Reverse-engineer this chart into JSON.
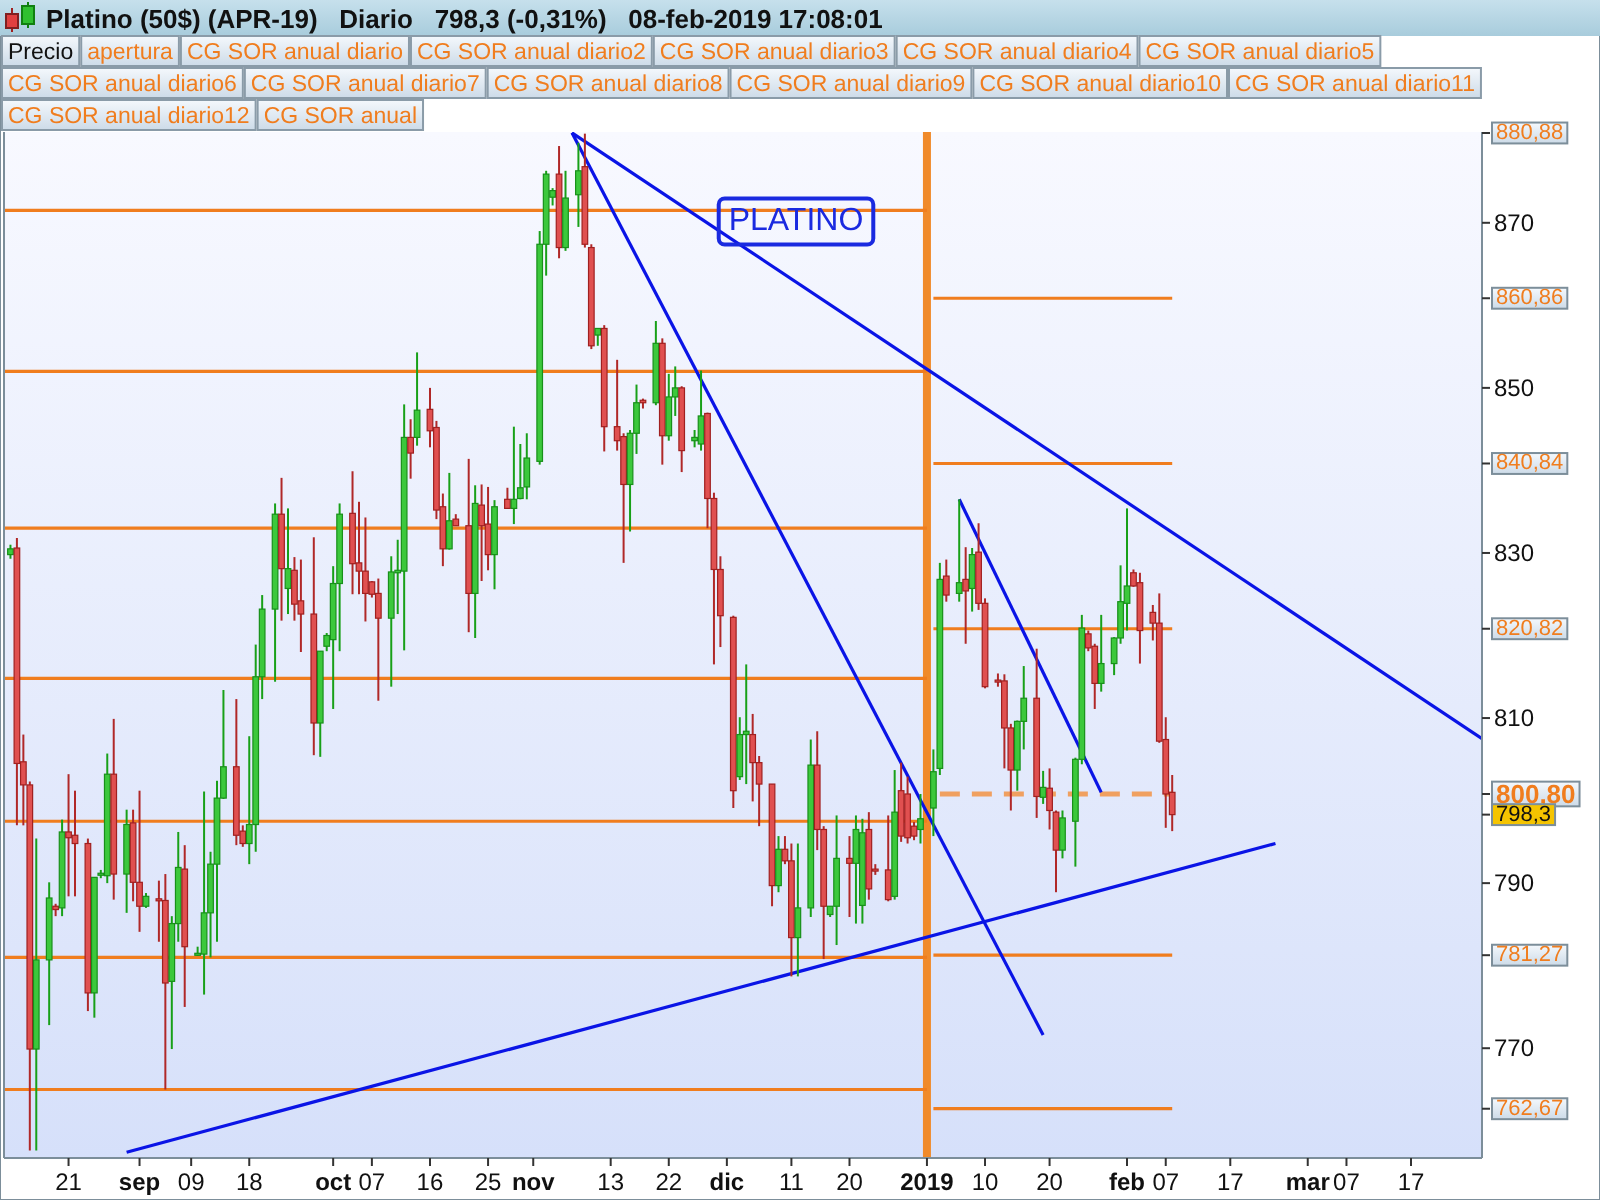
{
  "chart_data": {
    "type": "candlestick",
    "title": "Platino (50$) (APR-19)   Diario   798,3 (-0,31%)   08-feb-2019 17:08:01",
    "subtitle": "PLATINO",
    "x": [
      "2018-08-12",
      "2018-08-13",
      "2018-08-14",
      "2018-08-15",
      "2018-08-16",
      "2018-08-18",
      "2018-08-19",
      "2018-08-20",
      "2018-08-21",
      "2018-08-22",
      "2018-08-24",
      "2018-08-25",
      "2018-08-26",
      "2018-08-27",
      "2018-08-28",
      "2018-08-30",
      "2018-08-31",
      "2018-09-01",
      "2018-09-02",
      "2018-09-04",
      "2018-09-05",
      "2018-09-06",
      "2018-09-07",
      "2018-09-08",
      "2018-09-10",
      "2018-09-11",
      "2018-09-12",
      "2018-09-13",
      "2018-09-14",
      "2018-09-16",
      "2018-09-17",
      "2018-09-18",
      "2018-09-19",
      "2018-09-20",
      "2018-09-22",
      "2018-09-23",
      "2018-09-24",
      "2018-09-25",
      "2018-09-26",
      "2018-09-28",
      "2018-09-29",
      "2018-09-30",
      "2018-10-01",
      "2018-10-02",
      "2018-10-04",
      "2018-10-05",
      "2018-10-06",
      "2018-10-07",
      "2018-10-08",
      "2018-10-10",
      "2018-10-11",
      "2018-10-12",
      "2018-10-13",
      "2018-10-14",
      "2018-10-16",
      "2018-10-17",
      "2018-10-18",
      "2018-10-19",
      "2018-10-20",
      "2018-10-22",
      "2018-10-23",
      "2018-10-24",
      "2018-10-25",
      "2018-10-26",
      "2018-10-28",
      "2018-10-29",
      "2018-10-30",
      "2018-10-31",
      "2018-11-02",
      "2018-11-03",
      "2018-11-04",
      "2018-11-05",
      "2018-11-06",
      "2018-11-08",
      "2018-11-09",
      "2018-11-10",
      "2018-11-11",
      "2018-11-12",
      "2018-11-14",
      "2018-11-15",
      "2018-11-16",
      "2018-11-17",
      "2018-11-18",
      "2018-11-20",
      "2018-11-21",
      "2018-11-22",
      "2018-11-23",
      "2018-11-24",
      "2018-11-26",
      "2018-11-27",
      "2018-11-28",
      "2018-11-29",
      "2018-11-30",
      "2018-12-02",
      "2018-12-03",
      "2018-12-04",
      "2018-12-05",
      "2018-12-06",
      "2018-12-08",
      "2018-12-09",
      "2018-12-10",
      "2018-12-11",
      "2018-12-12",
      "2018-12-14",
      "2018-12-15",
      "2018-12-16",
      "2018-12-17",
      "2018-12-18",
      "2018-12-20",
      "2018-12-21",
      "2018-12-22",
      "2018-12-23",
      "2018-12-24",
      "2018-12-26",
      "2018-12-27",
      "2018-12-28",
      "2018-12-29",
      "2018-12-30",
      "2018-12-31",
      "2019-01-02",
      "2019-01-03",
      "2019-01-04",
      "2019-01-06",
      "2019-01-07",
      "2019-01-08",
      "2019-01-09",
      "2019-01-10",
      "2019-01-12",
      "2019-01-13",
      "2019-01-14",
      "2019-01-15",
      "2019-01-16",
      "2019-01-18",
      "2019-01-19",
      "2019-01-20",
      "2019-01-21",
      "2019-01-22",
      "2019-01-24",
      "2019-01-25",
      "2019-01-26",
      "2019-01-27",
      "2019-01-28",
      "2019-01-30",
      "2019-01-31",
      "2019-02-01",
      "2019-02-02",
      "2019-02-03",
      "2019-02-05",
      "2019-02-06",
      "2019-02-07",
      "2019-02-08"
    ],
    "ohlc": [
      [
        829.8,
        831,
        829.3,
        830.5
      ],
      [
        830.6,
        831.8,
        797,
        804.5
      ],
      [
        804.7,
        808,
        797,
        801.9
      ],
      [
        801.9,
        802.3,
        757.6,
        769.9
      ],
      [
        769.9,
        795.4,
        757.6,
        780.7
      ],
      [
        780.7,
        790.1,
        772.8,
        788.2
      ],
      [
        787.2,
        787.5,
        786,
        786.8
      ],
      [
        787,
        797.7,
        786,
        796.2
      ],
      [
        796.2,
        803.2,
        788.4,
        795.5
      ],
      [
        795.8,
        801.2,
        788.4,
        794.8
      ],
      [
        794.8,
        795.4,
        774.5,
        776.7
      ],
      [
        776.7,
        790.7,
        773.7,
        790.7
      ],
      [
        791,
        791.6,
        790.6,
        791.2
      ],
      [
        790.9,
        805.7,
        790,
        803.2
      ],
      [
        803.2,
        809.9,
        788,
        791.1
      ],
      [
        791.1,
        798.9,
        786.4,
        797.1
      ],
      [
        797.3,
        798.9,
        787.8,
        790.1
      ],
      [
        790.1,
        801.2,
        784.1,
        787.2
      ],
      [
        787.2,
        788.8,
        787,
        788.4
      ],
      [
        788.1,
        790.3,
        782.9,
        787.9
      ],
      [
        787.9,
        791.1,
        765,
        777.9
      ],
      [
        778.1,
        786,
        769.9,
        785.1
      ],
      [
        785.1,
        796.2,
        782.9,
        791.9
      ],
      [
        791.7,
        794.6,
        775,
        782.3
      ],
      [
        781.3,
        782.3,
        781.2,
        781.5
      ],
      [
        781.4,
        801.1,
        776.5,
        786.4
      ],
      [
        786.4,
        793.8,
        781,
        792.3
      ],
      [
        792.3,
        802.4,
        782.9,
        800.3
      ],
      [
        800.3,
        813.4,
        800.2,
        804.1
      ],
      [
        804.1,
        812.3,
        794.6,
        795.8
      ],
      [
        796.3,
        797,
        794.4,
        794.8
      ],
      [
        794.8,
        807.8,
        792.3,
        797.1
      ],
      [
        797.1,
        818.9,
        793.8,
        815
      ],
      [
        815,
        824.9,
        812.3,
        823.2
      ],
      [
        823.2,
        836,
        814.4,
        834.7
      ],
      [
        834.7,
        839.1,
        821.8,
        828.1
      ],
      [
        825.7,
        835.4,
        822.6,
        828.1
      ],
      [
        827.9,
        829.5,
        821.8,
        823.8
      ],
      [
        824.2,
        829.2,
        818,
        822.6
      ],
      [
        822.6,
        831.9,
        805.5,
        809.4
      ],
      [
        809.4,
        818.1,
        805.3,
        818.1
      ],
      [
        818.7,
        820.3,
        818.1,
        820
      ],
      [
        819.5,
        828.4,
        811.1,
        826.3
      ],
      [
        826.3,
        836,
        818.1,
        834.7
      ],
      [
        834.8,
        839.9,
        825,
        828.7
      ],
      [
        828.8,
        836.2,
        825,
        827.8
      ],
      [
        827.8,
        834.3,
        821.7,
        825.1
      ],
      [
        826.5,
        826.6,
        824.6,
        825
      ],
      [
        825.1,
        826.9,
        812.1,
        822.1
      ],
      [
        822.1,
        829.6,
        813.8,
        827.7
      ],
      [
        827.6,
        831.6,
        822.6,
        827.9
      ],
      [
        827.8,
        848,
        818.2,
        844
      ],
      [
        844,
        846.2,
        839,
        842.1
      ],
      [
        844,
        854.3,
        843,
        847.3
      ],
      [
        847.4,
        850,
        842.8,
        844.8
      ],
      [
        845.2,
        846,
        834.1,
        835.2
      ],
      [
        835.6,
        837.2,
        828.4,
        830.5
      ],
      [
        830.5,
        839.7,
        830.4,
        833.9
      ],
      [
        834.1,
        834.7,
        833.3,
        833.3
      ],
      [
        833.3,
        841.4,
        820.4,
        825.1
      ],
      [
        825.1,
        838.2,
        819.7,
        836
      ],
      [
        835.8,
        838.3,
        826.6,
        833.3
      ],
      [
        833.5,
        838,
        827.9,
        829.8
      ],
      [
        829.8,
        836.4,
        825.6,
        835.6
      ],
      [
        836.5,
        837.9,
        835.4,
        835.4
      ],
      [
        835.4,
        845.3,
        833.5,
        836.5
      ],
      [
        836.6,
        843.2,
        836.5,
        837.9
      ],
      [
        838,
        844.5,
        836.5,
        841.5
      ],
      [
        841.1,
        869,
        840.7,
        867.4
      ],
      [
        867.4,
        876.3,
        863.6,
        875.9
      ],
      [
        873.1,
        874.2,
        872.1,
        873.9
      ],
      [
        875.9,
        879.3,
        865.7,
        867
      ],
      [
        867,
        876.3,
        866.6,
        873
      ],
      [
        873.4,
        879.7,
        869.5,
        876.3
      ],
      [
        876.8,
        880.8,
        867,
        867.4
      ],
      [
        867,
        867.4,
        854.7,
        855.1
      ],
      [
        856.4,
        857.2,
        855.1,
        857.2
      ],
      [
        857.2,
        857.6,
        842.3,
        845.3
      ],
      [
        845.3,
        853.4,
        842.4,
        843.6
      ],
      [
        844.1,
        844.5,
        828.8,
        838.3
      ],
      [
        838.3,
        844.9,
        832.6,
        844.5
      ],
      [
        844.5,
        850.4,
        842,
        848.2
      ],
      [
        848.5,
        848.7,
        847.5,
        848.2
      ],
      [
        848.2,
        858.1,
        847.9,
        855.4
      ],
      [
        855.4,
        856,
        840.7,
        844.2
      ],
      [
        844.2,
        851.7,
        843.6,
        848.9
      ],
      [
        848.9,
        852.6,
        846.6,
        850
      ],
      [
        850,
        850.2,
        839.8,
        842.4
      ],
      [
        843.6,
        844.9,
        842.8,
        844
      ],
      [
        843.2,
        852.1,
        842.4,
        846.6
      ],
      [
        846.9,
        847,
        833,
        836.6
      ],
      [
        836.6,
        837.3,
        816.5,
        828
      ],
      [
        828,
        829.6,
        818.6,
        822.4
      ],
      [
        822.2,
        822.4,
        799.1,
        801.2
      ],
      [
        802.9,
        810.1,
        802.5,
        808
      ],
      [
        808,
        816.5,
        802,
        808.4
      ],
      [
        808,
        810.5,
        799.9,
        804.6
      ],
      [
        804.6,
        805.4,
        796.9,
        802
      ],
      [
        802,
        802,
        787.2,
        789.7
      ],
      [
        789.7,
        795.7,
        788.9,
        794.1
      ],
      [
        794.1,
        795.7,
        792.3,
        792.7
      ],
      [
        792.7,
        794.8,
        778.7,
        783.4
      ],
      [
        783.4,
        794.8,
        778.7,
        787
      ],
      [
        787,
        807.4,
        785.9,
        804.3
      ],
      [
        804.3,
        808.4,
        794,
        796.5
      ],
      [
        796.5,
        796.9,
        780.8,
        787.2
      ],
      [
        786.2,
        787.2,
        785.9,
        787.2
      ],
      [
        787.2,
        798.2,
        782.5,
        793
      ],
      [
        793,
        795.7,
        785.9,
        792.4
      ],
      [
        792.4,
        798.2,
        785.1,
        796.5
      ],
      [
        787.3,
        797.8,
        785.1,
        796.1
      ],
      [
        796.5,
        798.6,
        788,
        789.3
      ],
      [
        791.7,
        792.3,
        791,
        791.5
      ],
      [
        791.6,
        798.2,
        787.8,
        788
      ],
      [
        788.4,
        803.7,
        788,
        798.6
      ],
      [
        801.2,
        804.6,
        795,
        795.7
      ],
      [
        800.8,
        802.9,
        794.8,
        795.5
      ],
      [
        796.9,
        797.4,
        795.2,
        795.7
      ],
      [
        796.5,
        800.8,
        794.8,
        797.8
      ],
      [
        799.1,
        806.2,
        795.7,
        803.5
      ],
      [
        803.9,
        828.8,
        803.1,
        826.8
      ],
      [
        827.2,
        829.2,
        824.1,
        824.9
      ],
      [
        825.1,
        836.5,
        824.1,
        826.4
      ],
      [
        826.8,
        830.7,
        819,
        825.4
      ],
      [
        825.7,
        830.6,
        822.9,
        829.8
      ],
      [
        830.1,
        833.6,
        823.1,
        823.9
      ],
      [
        823.9,
        824.5,
        813.6,
        813.8
      ],
      [
        814.6,
        815.4,
        813.8,
        814.4
      ],
      [
        814.5,
        815.3,
        803.9,
        808.8
      ],
      [
        808.8,
        809.3,
        798.8,
        803.7
      ],
      [
        803.7,
        809.7,
        801.2,
        809.6
      ],
      [
        809.6,
        816.3,
        806.2,
        812.4
      ],
      [
        812.4,
        818.4,
        797.9,
        800.5
      ],
      [
        800.4,
        803.6,
        799.6,
        801.6
      ],
      [
        801.5,
        803.9,
        796.5,
        798.8
      ],
      [
        798.6,
        798.8,
        788.9,
        794
      ],
      [
        794,
        798.8,
        793,
        797.9
      ],
      [
        797.5,
        805.2,
        792,
        805
      ],
      [
        805,
        822.5,
        804.4,
        820.9
      ],
      [
        820.2,
        820.6,
        818.1,
        818.5
      ],
      [
        818.7,
        819,
        811.1,
        814.2
      ],
      [
        814.2,
        822.5,
        813.2,
        816.6
      ],
      [
        816.6,
        819.8,
        815.2,
        819.7
      ],
      [
        819.7,
        828.5,
        819,
        824.1
      ],
      [
        823.9,
        835.4,
        820.6,
        826
      ],
      [
        827.6,
        828,
        825.9,
        826
      ],
      [
        826.4,
        827.6,
        816.6,
        820.6
      ],
      [
        822.8,
        823.7,
        819.4,
        821.5
      ],
      [
        821.5,
        825.1,
        807,
        807.2
      ],
      [
        807.4,
        810.1,
        796.7,
        800.8
      ],
      [
        801,
        803.1,
        796.3,
        798.3
      ]
    ],
    "series": [
      {
        "type": "line",
        "color": "#f07d1e",
        "x": [
          "2018-08-11",
          "2019-01-01"
        ],
        "values": [
          871.5,
          871.5
        ]
      },
      {
        "type": "line",
        "color": "#f07d1e",
        "x": [
          "2018-08-11",
          "2019-01-01"
        ],
        "values": [
          852,
          852
        ]
      },
      {
        "type": "line",
        "color": "#f07d1e",
        "x": [
          "2018-08-11",
          "2019-01-01"
        ],
        "values": [
          833,
          833
        ]
      },
      {
        "type": "line",
        "color": "#f07d1e",
        "x": [
          "2018-08-11",
          "2019-01-01"
        ],
        "values": [
          814.8,
          814.8
        ]
      },
      {
        "type": "line",
        "color": "#f07d1e",
        "x": [
          "2018-08-11",
          "2019-01-01"
        ],
        "values": [
          797.5,
          797.5
        ]
      },
      {
        "type": "line",
        "color": "#f07d1e",
        "x": [
          "2018-08-11",
          "2019-01-01"
        ],
        "values": [
          781,
          781
        ]
      },
      {
        "type": "line",
        "color": "#f07d1e",
        "x": [
          "2018-08-11",
          "2019-01-01"
        ],
        "values": [
          765,
          765
        ]
      },
      {
        "type": "line",
        "color": "#f07d1e",
        "x": [
          "2019-01-02",
          "2019-02-08"
        ],
        "values": [
          860.86,
          860.86
        ]
      },
      {
        "type": "line",
        "color": "#f07d1e",
        "x": [
          "2019-01-02",
          "2019-02-08"
        ],
        "values": [
          840.84,
          840.84
        ]
      },
      {
        "type": "line",
        "color": "#f07d1e",
        "x": [
          "2019-01-02",
          "2019-02-08"
        ],
        "values": [
          820.82,
          820.82
        ]
      },
      {
        "type": "line",
        "color": "#f07d1e",
        "x": [
          "2019-01-02",
          "2019-02-08"
        ],
        "values": [
          781.27,
          781.27
        ]
      },
      {
        "type": "line",
        "color": "#f07d1e",
        "x": [
          "2019-01-02",
          "2019-02-08"
        ],
        "values": [
          762.67,
          762.67
        ]
      },
      {
        "type": "line",
        "color": "#f0a060",
        "line_style": "dashed",
        "x": [
          "2019-01-03",
          "2019-02-08"
        ],
        "values": [
          800.8,
          800.8
        ]
      },
      {
        "type": "line",
        "color": "#0a14e6",
        "x": [
          "2018-11-07",
          "2019-01-19"
        ],
        "values": [
          880.9,
          771.6
        ]
      },
      {
        "type": "line",
        "color": "#0a14e6",
        "x": [
          "2018-11-07",
          "2019-03-28"
        ],
        "values": [
          880.9,
          807.5
        ]
      },
      {
        "type": "line",
        "color": "#0a14e6",
        "x": [
          "2018-08-30",
          "2019-02-24"
        ],
        "values": [
          757.4,
          794.8
        ]
      },
      {
        "type": "line",
        "color": "#0a14e6",
        "x": [
          "2019-01-06",
          "2019-01-28"
        ],
        "values": [
          836.5,
          801
        ]
      }
    ],
    "ref_lines": [
      {
        "axis": "x",
        "value": "2019-01-01",
        "color": "#f08a2a"
      }
    ],
    "xlim": [
      "2018-08-11",
      "2019-03-28"
    ],
    "xticks": [
      {
        "value": "2018-08-21",
        "label": "21"
      },
      {
        "value": "2018-09-01",
        "label": "sep"
      },
      {
        "value": "2018-09-09",
        "label": "09"
      },
      {
        "value": "2018-09-18",
        "label": "18"
      },
      {
        "value": "2018-10-01",
        "label": "oct"
      },
      {
        "value": "2018-10-07",
        "label": "07"
      },
      {
        "value": "2018-10-16",
        "label": "16"
      },
      {
        "value": "2018-10-25",
        "label": "25"
      },
      {
        "value": "2018-11-01",
        "label": "nov"
      },
      {
        "value": "2018-11-13",
        "label": "13"
      },
      {
        "value": "2018-11-22",
        "label": "22"
      },
      {
        "value": "2018-12-01",
        "label": "dic"
      },
      {
        "value": "2018-12-11",
        "label": "11"
      },
      {
        "value": "2018-12-20",
        "label": "20"
      },
      {
        "value": "2019-01-01",
        "label": "2019"
      },
      {
        "value": "2019-01-10",
        "label": "10"
      },
      {
        "value": "2019-01-20",
        "label": "20"
      },
      {
        "value": "2019-02-01",
        "label": "feb"
      },
      {
        "value": "2019-02-07",
        "label": "07"
      },
      {
        "value": "2019-02-17",
        "label": "17"
      },
      {
        "value": "2019-03-01",
        "label": "mar"
      },
      {
        "value": "2019-03-07",
        "label": "07"
      },
      {
        "value": "2019-03-17",
        "label": "17"
      }
    ],
    "ylim": [
      756.7,
      881
    ],
    "yticks": [
      770,
      790,
      810,
      830,
      850,
      870,
      {
        "value": 880.88,
        "label": "880,88"
      },
      {
        "value": 860.86,
        "label": "860,86"
      },
      {
        "value": 840.84,
        "label": "840,84"
      },
      {
        "value": 820.82,
        "label": "820,82"
      },
      {
        "value": 800.8,
        "label": "800,80"
      },
      {
        "value": 781.27,
        "label": "781,27"
      },
      {
        "value": 762.67,
        "label": "762,67"
      },
      {
        "value": 798.3,
        "label": "798,3"
      }
    ],
    "annotations": [
      "Precio",
      "apertura",
      "CG SOR anual diario",
      "CG SOR anual diario2",
      "CG SOR anual diario3",
      "CG SOR anual diario4",
      "CG SOR anual diario5",
      "CG SOR anual diario6",
      "CG SOR anual diario7",
      "CG SOR anual diario8",
      "CG SOR anual diario9",
      "CG SOR anual diario10",
      "CG SOR anual diario11",
      "CG SOR anual diario12",
      "CG SOR anual"
    ]
  }
}
